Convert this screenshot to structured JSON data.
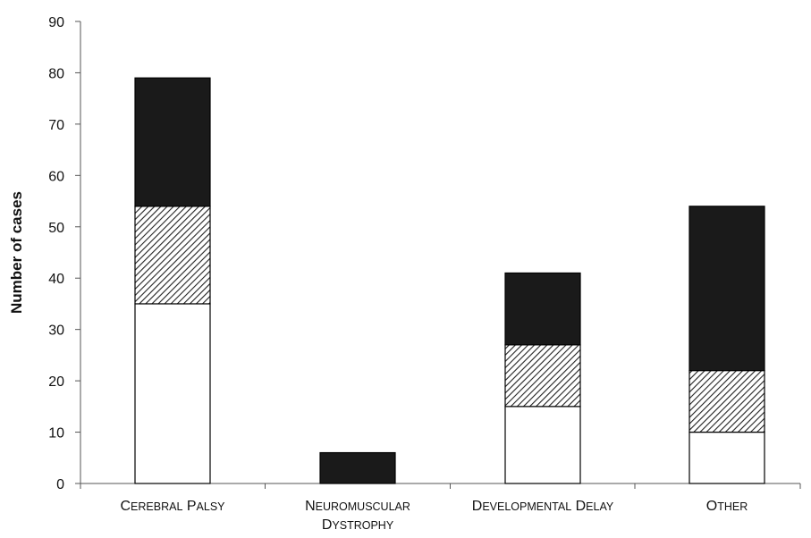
{
  "chart_data": {
    "type": "bar",
    "stacked": true,
    "categories": [
      {
        "line1": "Cerebral Palsy",
        "line2": ""
      },
      {
        "line1": "Neuromuscular",
        "line2": "Dystrophy"
      },
      {
        "line1": "Developmental delay",
        "line2": ""
      },
      {
        "line1": "Other",
        "line2": ""
      }
    ],
    "series": [
      {
        "values": [
          35,
          0,
          15,
          10
        ],
        "fill": "white"
      },
      {
        "values": [
          19,
          0,
          12,
          12
        ],
        "fill": "hatched"
      },
      {
        "values": [
          25,
          6,
          14,
          32
        ],
        "fill": "black"
      }
    ],
    "ylabel": "Number of cases",
    "xlabel": "",
    "ylim": [
      0,
      90
    ],
    "yticks": [
      0,
      10,
      20,
      30,
      40,
      50,
      60,
      70,
      80,
      90
    ],
    "grid": false,
    "legend": "none",
    "colors": {
      "white": "#ffffff",
      "black": "#1a1a1a",
      "outline": "#000000",
      "hatch_line": "#222222"
    }
  }
}
